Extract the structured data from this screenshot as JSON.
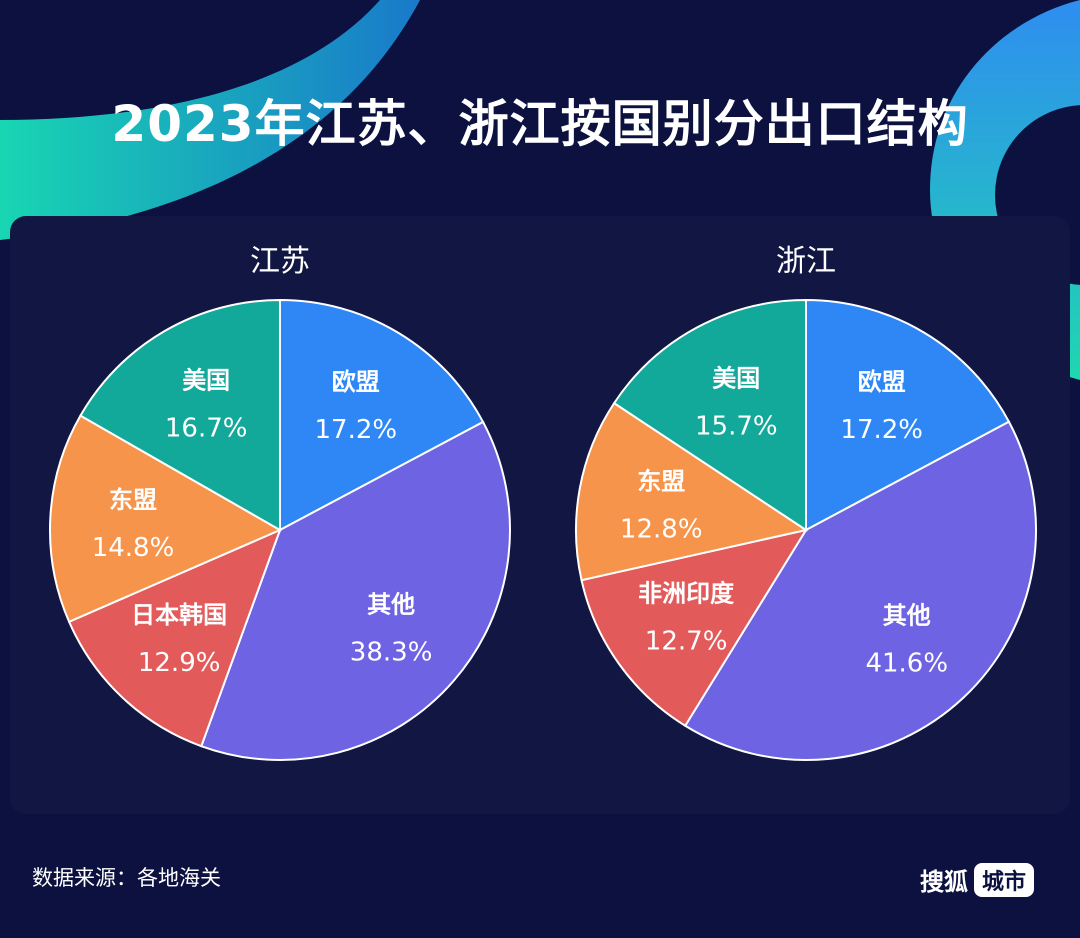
{
  "title": "2023年江苏、浙江按国别分出口结构",
  "source": "数据来源：各地海关",
  "brand": {
    "name": "搜狐",
    "tag": "城市"
  },
  "chart_data": [
    {
      "type": "pie",
      "title": "江苏",
      "unit": "%",
      "slices": [
        {
          "label": "欧盟",
          "value": 17.2,
          "display": "17.2%",
          "color": "#2f87f5"
        },
        {
          "label": "其他",
          "value": 38.3,
          "display": "38.3%",
          "color": "#6d63e3"
        },
        {
          "label": "日本韩国",
          "value": 12.9,
          "display": "12.9%",
          "color": "#e35a5a"
        },
        {
          "label": "东盟",
          "value": 14.8,
          "display": "14.8%",
          "color": "#f7944b"
        },
        {
          "label": "美国",
          "value": 16.7,
          "display": "16.7%",
          "color": "#12a99b"
        }
      ]
    },
    {
      "type": "pie",
      "title": "浙江",
      "unit": "%",
      "slices": [
        {
          "label": "欧盟",
          "value": 17.2,
          "display": "17.2%",
          "color": "#2f87f5"
        },
        {
          "label": "其他",
          "value": 41.6,
          "display": "41.6%",
          "color": "#6d63e3"
        },
        {
          "label": "非洲印度",
          "value": 12.7,
          "display": "12.7%",
          "color": "#e35a5a"
        },
        {
          "label": "东盟",
          "value": 12.8,
          "display": "12.8%",
          "color": "#f7944b"
        },
        {
          "label": "美国",
          "value": 15.7,
          "display": "15.7%",
          "color": "#12a99b"
        }
      ]
    }
  ]
}
